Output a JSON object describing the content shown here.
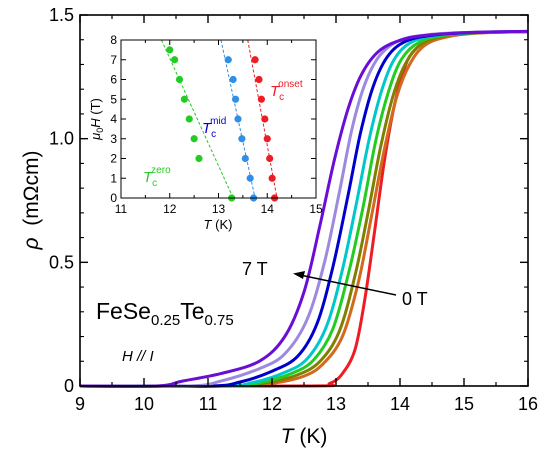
{
  "chart_data": [
    {
      "type": "line",
      "xlabel": {
        "symbol": "T",
        "unit": " (K)"
      },
      "ylabel": {
        "symbol": "ρ",
        "unit": "  (mΩcm)"
      },
      "xlim": [
        9,
        16
      ],
      "ylim": [
        0,
        1.5
      ],
      "xticks": [
        "9",
        "10",
        "11",
        "12",
        "13",
        "14",
        "15",
        "16"
      ],
      "yticks": [
        "0",
        "0.5",
        "1.0",
        "1.5"
      ],
      "grid": false,
      "sample_label": {
        "prefix": "FeSe",
        "sub1": "0.25",
        "mid": "Te",
        "sub2": "0.75"
      },
      "field_direction": "H // I",
      "annotation_high": "7 T",
      "annotation_low": "0 T",
      "series": [
        {
          "color": "#ee1c24",
          "x": [
            9.0,
            12.6,
            12.9,
            13.1,
            13.3,
            13.45,
            13.6,
            13.75,
            13.9,
            14.05,
            14.2,
            14.5,
            15.0,
            15.5,
            16.0
          ],
          "values": [
            0,
            0,
            0.01,
            0.05,
            0.15,
            0.35,
            0.62,
            0.9,
            1.12,
            1.27,
            1.35,
            1.405,
            1.425,
            1.43,
            1.433
          ]
        },
        {
          "color": "#d2691e",
          "x": [
            9.0,
            11.5,
            12.0,
            12.5,
            12.8,
            13.1,
            13.35,
            13.55,
            13.75,
            13.95,
            14.15,
            14.4,
            14.8,
            15.3,
            16.0
          ],
          "values": [
            0,
            0,
            0.01,
            0.04,
            0.09,
            0.2,
            0.42,
            0.68,
            0.95,
            1.17,
            1.3,
            1.38,
            1.415,
            1.428,
            1.433
          ]
        },
        {
          "color": "#808000",
          "x": [
            9.0,
            11.4,
            11.9,
            12.4,
            12.75,
            13.05,
            13.3,
            13.5,
            13.7,
            13.9,
            14.1,
            14.35,
            14.75,
            15.3,
            16.0
          ],
          "values": [
            0,
            0,
            0.012,
            0.045,
            0.1,
            0.22,
            0.45,
            0.7,
            0.97,
            1.18,
            1.31,
            1.385,
            1.417,
            1.429,
            1.433
          ]
        },
        {
          "color": "#22cc22",
          "x": [
            9.0,
            11.3,
            11.8,
            12.3,
            12.65,
            12.95,
            13.2,
            13.42,
            13.62,
            13.82,
            14.02,
            14.3,
            14.7,
            15.3,
            16.0
          ],
          "values": [
            0,
            0,
            0.013,
            0.05,
            0.105,
            0.23,
            0.46,
            0.72,
            0.99,
            1.19,
            1.32,
            1.39,
            1.418,
            1.43,
            1.433
          ]
        },
        {
          "color": "#00c8c8",
          "x": [
            9.0,
            11.2,
            11.7,
            12.2,
            12.55,
            12.85,
            13.1,
            13.32,
            13.52,
            13.72,
            13.92,
            14.2,
            14.65,
            15.3,
            16.0
          ],
          "values": [
            0,
            0,
            0.014,
            0.055,
            0.11,
            0.24,
            0.47,
            0.74,
            1.0,
            1.2,
            1.325,
            1.393,
            1.42,
            1.43,
            1.433
          ]
        },
        {
          "color": "#0000cd",
          "x": [
            9.0,
            11.0,
            11.5,
            12.0,
            12.4,
            12.7,
            12.95,
            13.18,
            13.38,
            13.58,
            13.8,
            14.1,
            14.6,
            15.3,
            16.0
          ],
          "values": [
            0,
            0,
            0.016,
            0.06,
            0.12,
            0.25,
            0.48,
            0.76,
            1.02,
            1.21,
            1.33,
            1.395,
            1.421,
            1.431,
            1.433
          ]
        },
        {
          "color": "#9b8ae0",
          "x": [
            9.0,
            10.7,
            11.2,
            11.8,
            12.2,
            12.55,
            12.82,
            13.05,
            13.25,
            13.45,
            13.68,
            14.0,
            14.5,
            15.2,
            16.0
          ],
          "values": [
            0,
            0,
            0.02,
            0.07,
            0.13,
            0.27,
            0.5,
            0.78,
            1.04,
            1.22,
            1.335,
            1.398,
            1.422,
            1.431,
            1.433
          ]
        },
        {
          "color": "#6a0dd6",
          "x": [
            9.0,
            10.2,
            10.6,
            11.2,
            11.8,
            12.2,
            12.5,
            12.75,
            12.98,
            13.2,
            13.42,
            13.7,
            14.1,
            14.6,
            15.2,
            16.0
          ],
          "values": [
            0,
            0,
            0.02,
            0.05,
            0.1,
            0.2,
            0.38,
            0.65,
            0.92,
            1.13,
            1.27,
            1.36,
            1.405,
            1.422,
            1.43,
            1.434
          ]
        }
      ]
    },
    {
      "type": "scatter",
      "xlabel": {
        "symbol": "T",
        "unit": " (K)"
      },
      "ylabel": {
        "symbol": "μ",
        "sub": "0",
        "symbol2": "H",
        "unit": " (T)"
      },
      "xlim": [
        11,
        15
      ],
      "ylim": [
        0,
        8
      ],
      "xticks": [
        "11",
        "12",
        "13",
        "14",
        "15"
      ],
      "yticks": [
        "0",
        "1",
        "2",
        "3",
        "4",
        "5",
        "6",
        "7",
        "8"
      ],
      "series": [
        {
          "name": {
            "base": "T",
            "sub": "c",
            "sup": "zero"
          },
          "color": "#22cc22",
          "fit_line": {
            "x": [
              11.83,
              13.3
            ],
            "y": [
              8,
              0
            ]
          },
          "x": [
            13.27,
            12.6,
            12.5,
            12.4,
            12.3,
            12.2,
            12.1,
            12.0
          ],
          "y": [
            0,
            2,
            3,
            4,
            5,
            6,
            7,
            7.5
          ]
        },
        {
          "name": {
            "base": "T",
            "sub": "c",
            "sup": "mid"
          },
          "color": "#2f8fe8",
          "fit_line": {
            "x": [
              13.05,
              13.75
            ],
            "y": [
              8,
              0
            ]
          },
          "x": [
            13.72,
            13.65,
            13.55,
            13.48,
            13.4,
            13.35,
            13.3,
            13.2
          ],
          "y": [
            0,
            1,
            2,
            3,
            4,
            5,
            6,
            7
          ]
        },
        {
          "name": {
            "base": "T",
            "sub": "c",
            "sup": "onset"
          },
          "color": "#ee1c24",
          "fit_line": {
            "x": [
              13.6,
              14.2
            ],
            "y": [
              8,
              0
            ]
          },
          "x": [
            14.15,
            14.1,
            14.05,
            14.0,
            13.95,
            13.88,
            13.83,
            13.75
          ],
          "y": [
            0,
            1,
            2,
            3,
            4,
            5,
            6,
            7
          ]
        }
      ]
    }
  ]
}
